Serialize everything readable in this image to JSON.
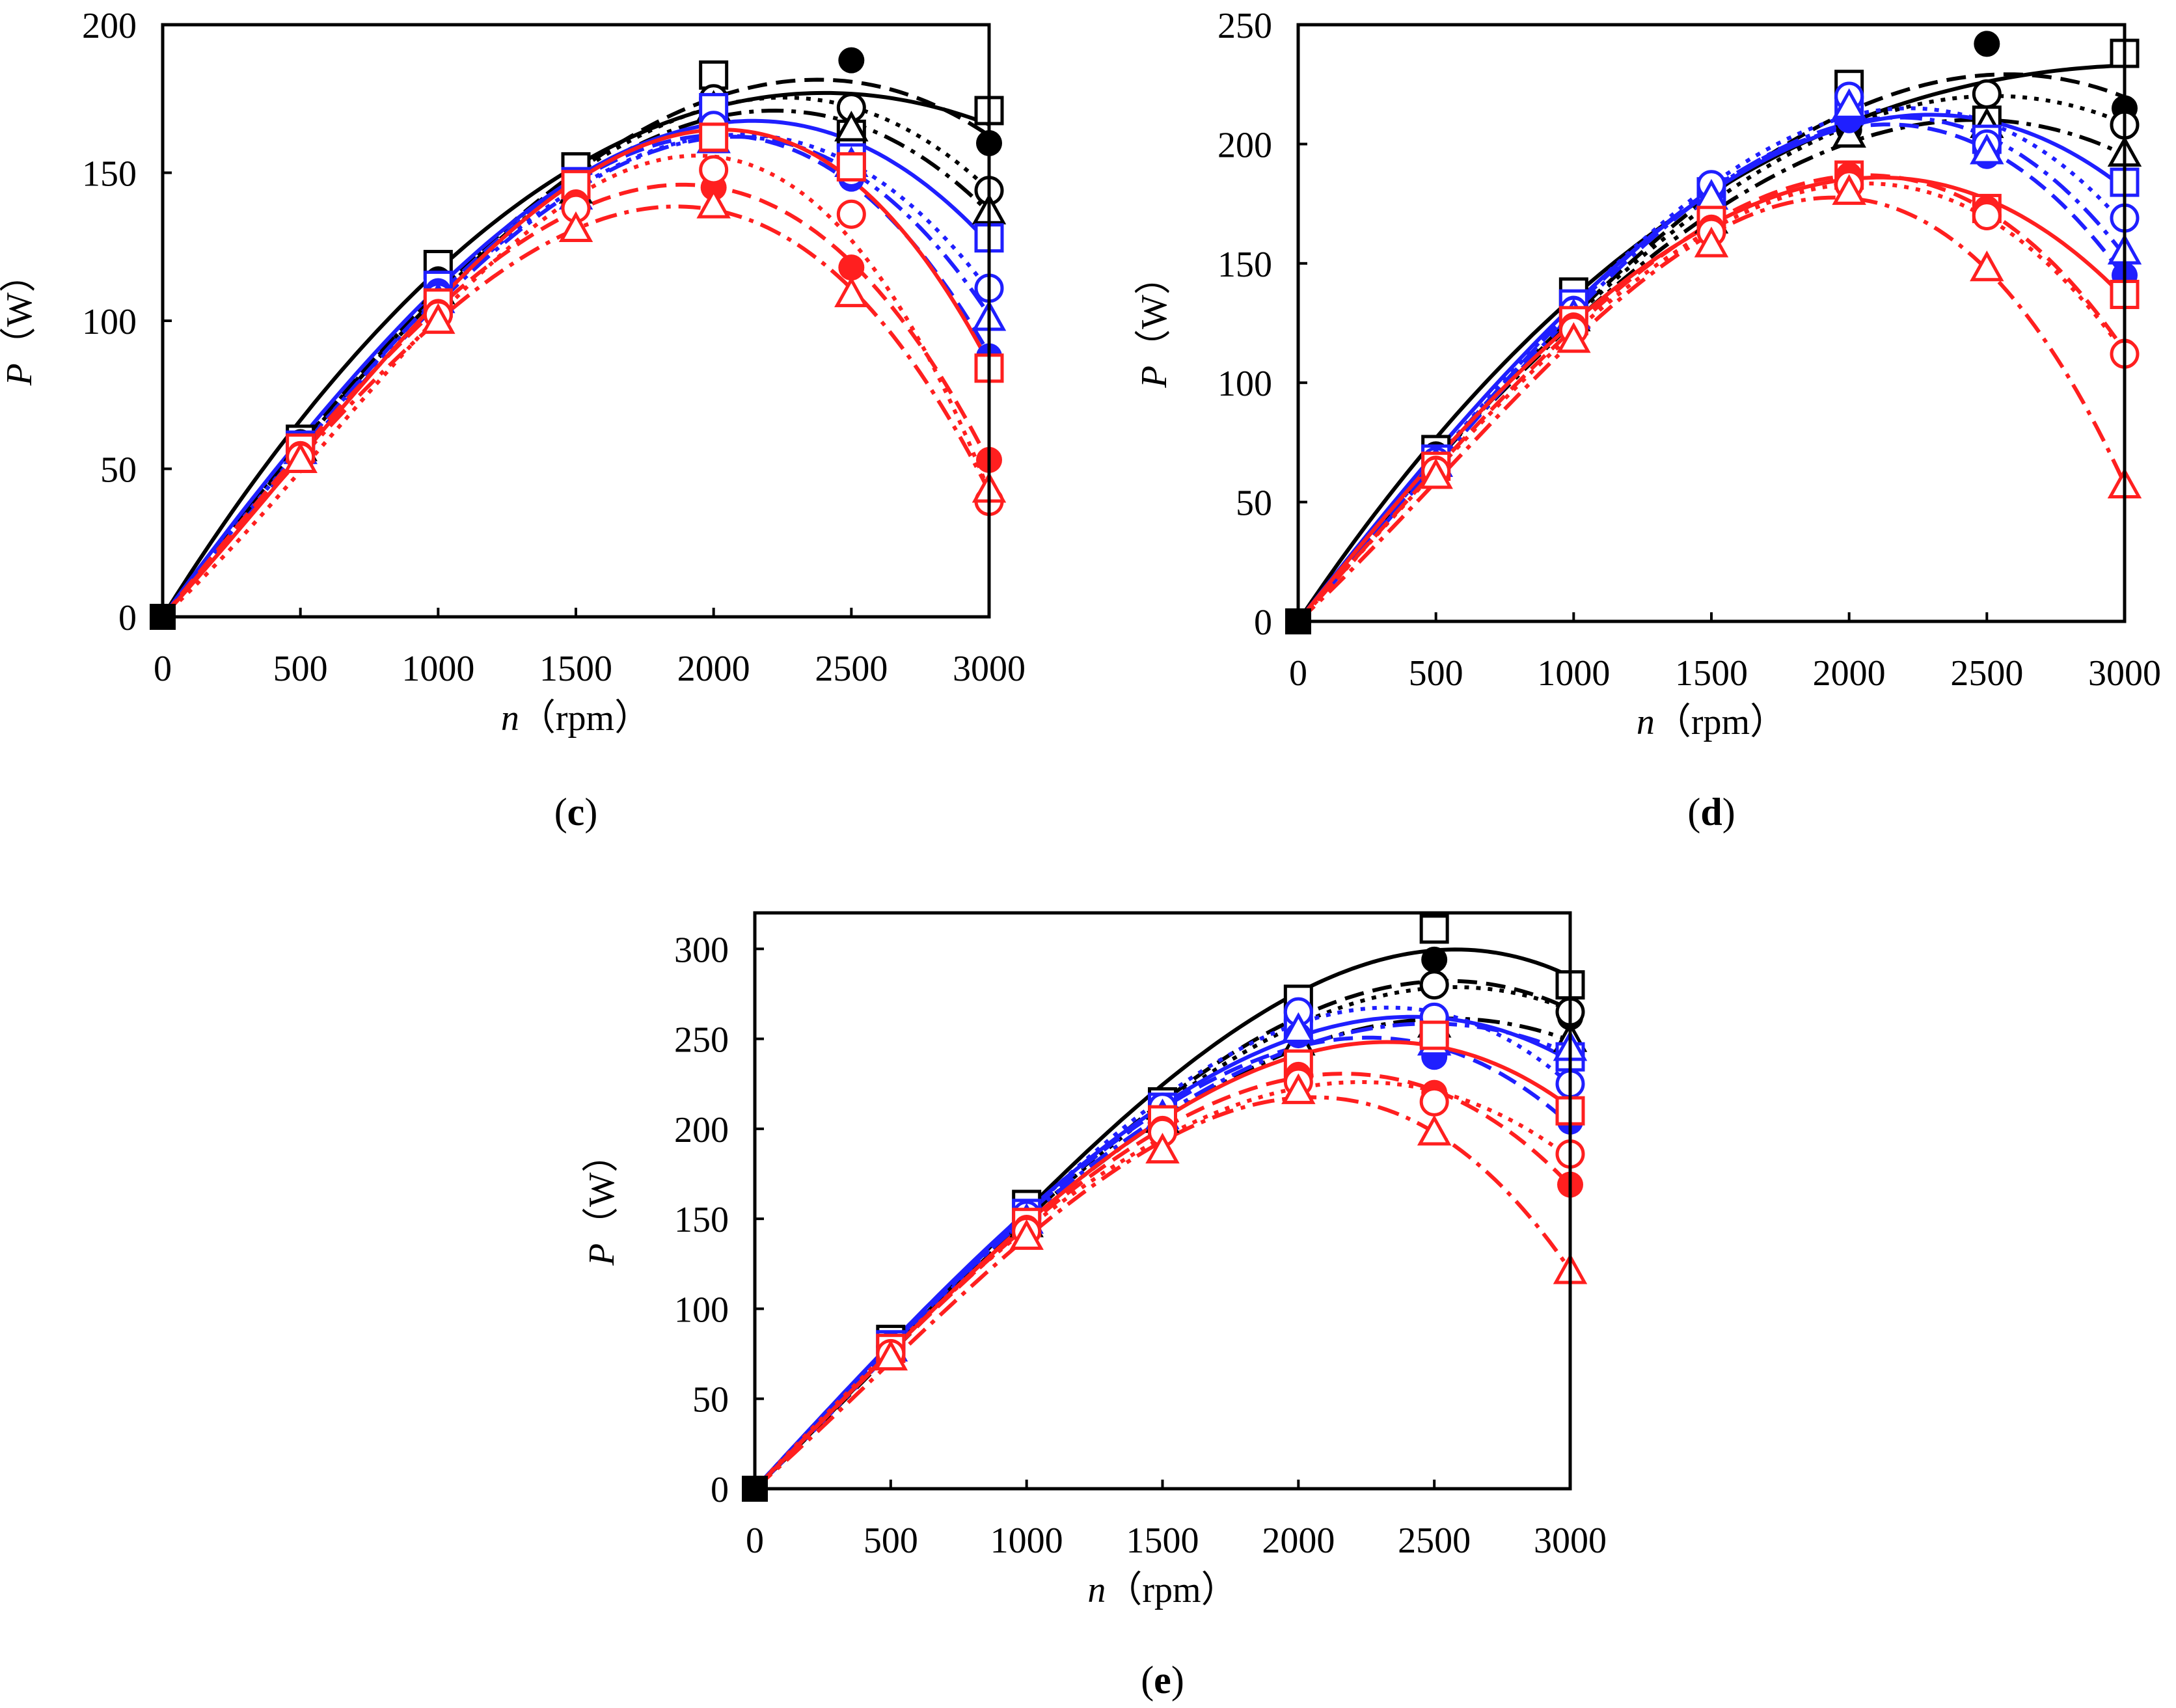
{
  "figure": {
    "colors": {
      "black": "#000000",
      "blue": "#1f1fff",
      "red": "#ff1f1f"
    }
  },
  "chart_data": [
    {
      "panel": "(c)",
      "panel_paren_open": "(",
      "panel_letter": "c",
      "panel_paren_close": ")",
      "type": "line",
      "xlabel_var": "n",
      "xlabel_unit": "（rpm）",
      "ylabel_var": "P",
      "ylabel_unit": "（W）",
      "xlim": [
        0,
        3000
      ],
      "ylim": [
        0,
        200
      ],
      "xticks": [
        0,
        500,
        1000,
        1500,
        2000,
        2500,
        3000
      ],
      "yticks": [
        0,
        50,
        100,
        150,
        200
      ],
      "x": [
        0,
        500,
        1000,
        1500,
        2000,
        2500,
        3000
      ],
      "series": [
        {
          "name": "black-square",
          "color": "black",
          "dash": "solid",
          "marker": "square-open",
          "values": [
            0,
            60,
            119,
            152,
            183,
            163,
            171
          ]
        },
        {
          "name": "black-circle-filled",
          "color": "black",
          "dash": "dash",
          "marker": "circle-filled",
          "values": [
            0,
            59,
            114,
            146,
            171,
            188,
            160
          ]
        },
        {
          "name": "black-circle-open",
          "color": "black",
          "dash": "dot",
          "marker": "circle-open",
          "values": [
            0,
            58,
            112,
            145,
            175,
            172,
            144
          ]
        },
        {
          "name": "black-triangle",
          "color": "black",
          "dash": "dashdot",
          "marker": "triangle-open",
          "values": [
            0,
            57,
            110,
            144,
            172,
            165,
            137
          ]
        },
        {
          "name": "blue-square",
          "color": "blue",
          "dash": "solid",
          "marker": "square-open",
          "values": [
            0,
            58,
            112,
            147,
            172,
            155,
            128
          ]
        },
        {
          "name": "blue-circle-filled",
          "color": "blue",
          "dash": "dash",
          "marker": "circle-filled",
          "values": [
            0,
            57,
            110,
            144,
            163,
            148,
            88
          ]
        },
        {
          "name": "blue-circle-open",
          "color": "blue",
          "dash": "dot",
          "marker": "circle-open",
          "values": [
            0,
            56,
            108,
            143,
            166,
            150,
            111
          ]
        },
        {
          "name": "blue-triangle",
          "color": "blue",
          "dash": "dashdot",
          "marker": "triangle-open",
          "values": [
            0,
            56,
            107,
            142,
            161,
            153,
            101
          ]
        },
        {
          "name": "red-square",
          "color": "red",
          "dash": "solid",
          "marker": "square-open",
          "values": [
            0,
            57,
            106,
            146,
            162,
            152,
            84
          ]
        },
        {
          "name": "red-circle-filled",
          "color": "red",
          "dash": "dash",
          "marker": "circle-filled",
          "values": [
            0,
            55,
            103,
            140,
            145,
            118,
            53
          ]
        },
        {
          "name": "red-circle-open",
          "color": "red",
          "dash": "dot",
          "marker": "circle-open",
          "values": [
            0,
            54,
            102,
            138,
            151,
            136,
            39
          ]
        },
        {
          "name": "red-triangle",
          "color": "red",
          "dash": "dashdot",
          "marker": "triangle-open",
          "values": [
            0,
            53,
            100,
            131,
            139,
            109,
            43
          ]
        }
      ]
    },
    {
      "panel": "(d)",
      "panel_paren_open": "(",
      "panel_letter": "d",
      "panel_paren_close": ")",
      "type": "line",
      "xlabel_var": "n",
      "xlabel_unit": "（rpm）",
      "ylabel_var": "P",
      "ylabel_unit": "（W）",
      "xlim": [
        0,
        3000
      ],
      "ylim": [
        0,
        250
      ],
      "xticks": [
        0,
        500,
        1000,
        1500,
        2000,
        2500,
        3000
      ],
      "yticks": [
        0,
        50,
        100,
        150,
        200,
        250
      ],
      "x": [
        0,
        500,
        1000,
        1500,
        2000,
        2500,
        3000
      ],
      "series": [
        {
          "name": "black-square",
          "color": "black",
          "dash": "solid",
          "marker": "square-open",
          "values": [
            0,
            72,
            138,
            175,
            225,
            210,
            238
          ]
        },
        {
          "name": "black-circle-filled",
          "color": "black",
          "dash": "dash",
          "marker": "circle-filled",
          "values": [
            0,
            70,
            133,
            172,
            206,
            242,
            215
          ]
        },
        {
          "name": "black-circle-open",
          "color": "black",
          "dash": "dot",
          "marker": "circle-open",
          "values": [
            0,
            68,
            130,
            170,
            210,
            221,
            208
          ]
        },
        {
          "name": "black-triangle",
          "color": "black",
          "dash": "dashdot",
          "marker": "triangle-open",
          "values": [
            0,
            66,
            127,
            168,
            204,
            208,
            196
          ]
        },
        {
          "name": "blue-square",
          "color": "blue",
          "dash": "solid",
          "marker": "square-open",
          "values": [
            0,
            68,
            133,
            180,
            214,
            202,
            184
          ]
        },
        {
          "name": "blue-circle-filled",
          "color": "blue",
          "dash": "dash",
          "marker": "circle-filled",
          "values": [
            0,
            67,
            131,
            180,
            210,
            195,
            145
          ]
        },
        {
          "name": "blue-circle-open",
          "color": "blue",
          "dash": "dot",
          "marker": "circle-open",
          "values": [
            0,
            67,
            130,
            183,
            220,
            200,
            169
          ]
        },
        {
          "name": "blue-triangle",
          "color": "blue",
          "dash": "dashdot",
          "marker": "triangle-open",
          "values": [
            0,
            66,
            128,
            178,
            216,
            197,
            155
          ]
        },
        {
          "name": "red-square",
          "color": "red",
          "dash": "solid",
          "marker": "square-open",
          "values": [
            0,
            65,
            126,
            168,
            187,
            173,
            137
          ]
        },
        {
          "name": "red-circle-filled",
          "color": "red",
          "dash": "dash",
          "marker": "circle-filled",
          "values": [
            0,
            64,
            124,
            165,
            187,
            173,
            113
          ]
        },
        {
          "name": "red-circle-open",
          "color": "red",
          "dash": "dot",
          "marker": "circle-open",
          "values": [
            0,
            63,
            122,
            163,
            183,
            170,
            112
          ]
        },
        {
          "name": "red-triangle",
          "color": "red",
          "dash": "dashdot",
          "marker": "triangle-open",
          "values": [
            0,
            61,
            118,
            158,
            180,
            148,
            57
          ]
        }
      ]
    },
    {
      "panel": "(e)",
      "panel_paren_open": "(",
      "panel_letter": "e",
      "panel_paren_close": ")",
      "type": "line",
      "xlabel_var": "n",
      "xlabel_unit": "（rpm）",
      "ylabel_var": "P",
      "ylabel_unit": "（W）",
      "xlim": [
        0,
        3000
      ],
      "ylim": [
        0,
        320
      ],
      "xticks": [
        0,
        500,
        1000,
        1500,
        2000,
        2500,
        3000
      ],
      "yticks": [
        0,
        50,
        100,
        150,
        200,
        250,
        300
      ],
      "x": [
        0,
        500,
        1000,
        1500,
        2000,
        2500,
        3000
      ],
      "series": [
        {
          "name": "black-square",
          "color": "black",
          "dash": "solid",
          "marker": "square-open",
          "values": [
            0,
            83,
            158,
            215,
            272,
            311,
            280
          ]
        },
        {
          "name": "black-circle-filled",
          "color": "black",
          "dash": "dash",
          "marker": "circle-filled",
          "values": [
            0,
            80,
            152,
            210,
            255,
            294,
            262
          ]
        },
        {
          "name": "black-circle-open",
          "color": "black",
          "dash": "dot",
          "marker": "circle-open",
          "values": [
            0,
            79,
            150,
            208,
            260,
            280,
            265
          ]
        },
        {
          "name": "black-triangle",
          "color": "black",
          "dash": "dashdot",
          "marker": "triangle-open",
          "values": [
            0,
            78,
            147,
            205,
            248,
            258,
            250
          ]
        },
        {
          "name": "blue-square",
          "color": "blue",
          "dash": "solid",
          "marker": "square-open",
          "values": [
            0,
            80,
            153,
            212,
            258,
            255,
            240
          ]
        },
        {
          "name": "blue-circle-filled",
          "color": "blue",
          "dash": "dash",
          "marker": "circle-filled",
          "values": [
            0,
            79,
            151,
            210,
            252,
            240,
            204
          ]
        },
        {
          "name": "blue-circle-open",
          "color": "blue",
          "dash": "dot",
          "marker": "circle-open",
          "values": [
            0,
            79,
            152,
            212,
            265,
            262,
            225
          ]
        },
        {
          "name": "blue-triangle",
          "color": "blue",
          "dash": "dashdot",
          "marker": "triangle-open",
          "values": [
            0,
            78,
            149,
            207,
            255,
            248,
            245
          ]
        },
        {
          "name": "red-square",
          "color": "red",
          "dash": "solid",
          "marker": "square-open",
          "values": [
            0,
            78,
            148,
            205,
            236,
            252,
            210
          ]
        },
        {
          "name": "red-circle-filled",
          "color": "red",
          "dash": "dash",
          "marker": "circle-filled",
          "values": [
            0,
            76,
            145,
            200,
            230,
            220,
            169
          ]
        },
        {
          "name": "red-circle-open",
          "color": "red",
          "dash": "dot",
          "marker": "circle-open",
          "values": [
            0,
            75,
            143,
            198,
            226,
            215,
            186
          ]
        },
        {
          "name": "red-triangle",
          "color": "red",
          "dash": "dashdot",
          "marker": "triangle-open",
          "values": [
            0,
            73,
            140,
            188,
            221,
            198,
            121
          ]
        }
      ]
    }
  ]
}
